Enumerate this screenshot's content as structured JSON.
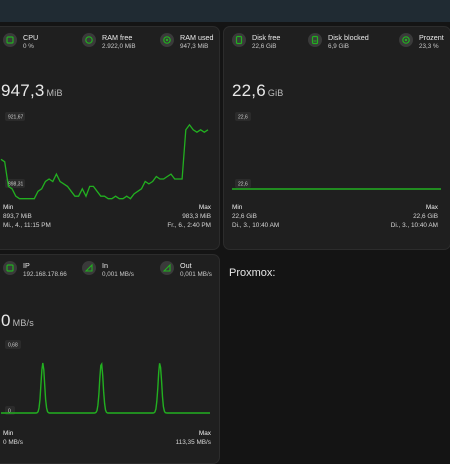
{
  "colors": {
    "accent": "#22b020",
    "card_bg": "#1f1f1f",
    "page_bg": "#141414",
    "topbar": "#202b33"
  },
  "memory_card": {
    "stats": [
      {
        "icon": "cpu-icon",
        "label": "CPU",
        "value": "0 %"
      },
      {
        "icon": "ram-free-icon",
        "label": "RAM free",
        "value": "2.922,0 MiB"
      },
      {
        "icon": "ram-used-icon",
        "label": "RAM used",
        "value": "947,3 MiB"
      }
    ],
    "current_value": "947,3",
    "current_unit": "MiB",
    "y_top_label": "921,67",
    "y_bottom_label": "898,31",
    "min_label": "Min",
    "min_value": "893,7 MiB",
    "min_time": "Mi., 4., 11:15 PM",
    "max_label": "Max",
    "max_value": "983,3 MiB",
    "max_time": "Fr., 6., 2:40 PM",
    "series": [
      914,
      913,
      903,
      902,
      899,
      898,
      898,
      898,
      898,
      898,
      901,
      902,
      905,
      906,
      905,
      908,
      905,
      904,
      903,
      901,
      899,
      899,
      902,
      899,
      903,
      903,
      901,
      899,
      899,
      898,
      898,
      899,
      898,
      898,
      899,
      898,
      900,
      901,
      902,
      905,
      904,
      905,
      907,
      906,
      906,
      907,
      908,
      906,
      906,
      906,
      926,
      928,
      926,
      925,
      926,
      925,
      926
    ]
  },
  "disk_card": {
    "stats": [
      {
        "icon": "disk-free-icon",
        "label": "Disk free",
        "value": "22,6 GiB"
      },
      {
        "icon": "disk-blocked-icon",
        "label": "Disk blocked",
        "value": "6,9 GiB"
      },
      {
        "icon": "percent-icon",
        "label": "Prozent",
        "value": "23,3 %"
      }
    ],
    "current_value": "22,6",
    "current_unit": "GiB",
    "y_top_label": "22,6",
    "y_bottom_label": "22,6",
    "min_label": "Min",
    "min_value": "22,6 GiB",
    "min_time": "Di., 3., 10:40 AM",
    "max_label": "Max",
    "max_value": "22,6 GiB",
    "max_time": "Di., 3., 10:40 AM"
  },
  "network_card": {
    "stats": [
      {
        "icon": "ip-icon",
        "label": "IP",
        "value": "192.168.178.66"
      },
      {
        "icon": "in-icon",
        "label": "In",
        "value": "0,001 MB/s"
      },
      {
        "icon": "out-icon",
        "label": "Out",
        "value": "0,001 MB/s"
      }
    ],
    "current_value": "0",
    "current_unit": "MB/s",
    "y_top_label": "0,68",
    "y_bottom_label": "0",
    "min_label": "Min",
    "min_value": "0 MB/s",
    "max_label": "Max",
    "max_value": "113,35 MB/s",
    "spikes": [
      0.2,
      0.48,
      0.76
    ]
  },
  "proxmox": {
    "heading": "Proxmox:"
  }
}
